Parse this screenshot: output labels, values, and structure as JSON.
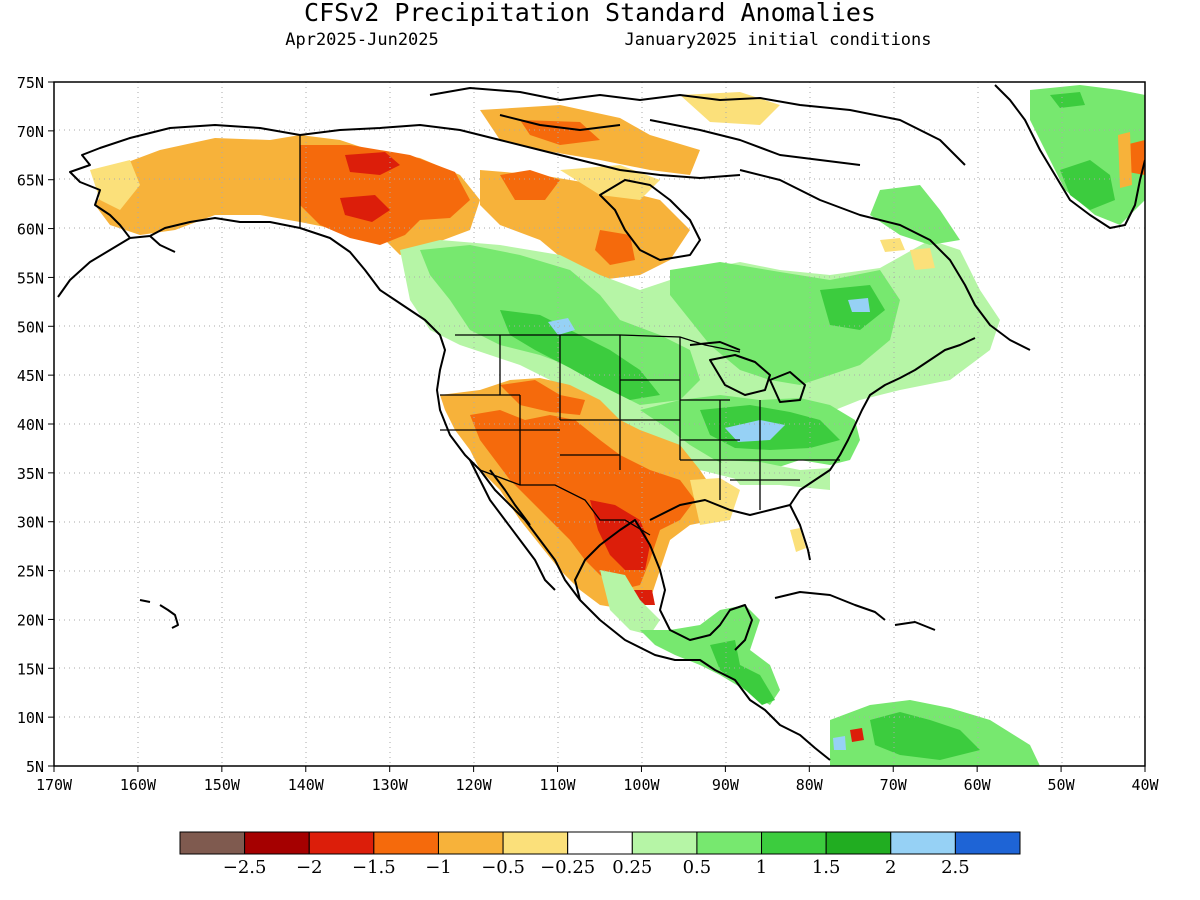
{
  "figure": {
    "title": "CFSv2 Precipitation Standard Anomalies",
    "subtitle_left": "Apr2025-Jun2025",
    "subtitle_right": "January2025 initial conditions"
  },
  "map": {
    "lon_range": [
      -170,
      -40
    ],
    "lat_range": [
      5,
      75
    ],
    "lat_labels": [
      "75N",
      "70N",
      "65N",
      "60N",
      "55N",
      "50N",
      "45N",
      "40N",
      "35N",
      "30N",
      "25N",
      "20N",
      "15N",
      "10N",
      "5N"
    ],
    "lon_labels": [
      "170W",
      "160W",
      "150W",
      "140W",
      "130W",
      "120W",
      "110W",
      "100W",
      "90W",
      "80W",
      "70W",
      "60W",
      "50W",
      "40W"
    ],
    "grid": "dotted",
    "anomaly_regions": [
      {
        "name": "alaska-yukon-dry",
        "class": "-1"
      },
      {
        "name": "yukon-core-dry",
        "class": "-1.5"
      },
      {
        "name": "northern-canada-dry",
        "class": "-1"
      },
      {
        "name": "hudson-west-dry",
        "class": "-0.5"
      },
      {
        "name": "northwest-canada-wet",
        "class": "0.5"
      },
      {
        "name": "prairies-wet",
        "class": "1"
      },
      {
        "name": "prairies-core-wet",
        "class": "1.5"
      },
      {
        "name": "ohio-valley-wet",
        "class": "1.5"
      },
      {
        "name": "great-lakes-wet",
        "class": "1"
      },
      {
        "name": "quebec-wet",
        "class": "1"
      },
      {
        "name": "southwest-us-dry",
        "class": "-1"
      },
      {
        "name": "southwest-core-dry",
        "class": "-1.5"
      },
      {
        "name": "texas-mexico-dry",
        "class": "-2"
      },
      {
        "name": "gulf-coast-dry",
        "class": "-0.5"
      },
      {
        "name": "central-america-wet",
        "class": "1"
      },
      {
        "name": "northern-south-america-wet",
        "class": "1"
      },
      {
        "name": "greenland-wet",
        "class": "1"
      }
    ]
  },
  "colorbar": {
    "colors": [
      "#7f5a4f",
      "#a50000",
      "#dc1e0a",
      "#f56a0c",
      "#f7b23a",
      "#fbe07a",
      "#ffffff",
      "#b6f5a6",
      "#77e86f",
      "#3ccc3e",
      "#21ad21",
      "#96d1f5",
      "#1e64d6"
    ],
    "tick_labels": [
      "-2.5",
      "-2",
      "-1.5",
      "-1",
      "-0.5",
      "-0.25",
      "0.25",
      "0.5",
      "1",
      "1.5",
      "2",
      "2.5"
    ]
  }
}
